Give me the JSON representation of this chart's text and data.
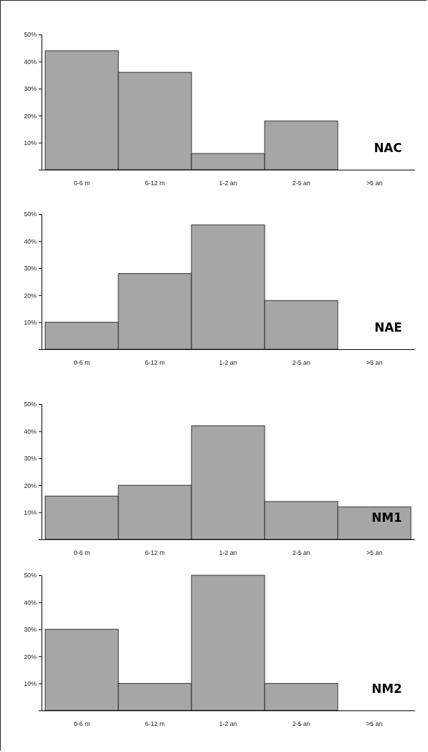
{
  "chart_data": [
    {
      "type": "bar",
      "title": "NAC",
      "categories": [
        "0-6 m",
        "6-12 m",
        "1-2 an",
        "2-5 an",
        ">5 an"
      ],
      "values": [
        44,
        36,
        6,
        18,
        0
      ],
      "color": "#a6a6a6",
      "ylim": [
        0,
        50
      ],
      "yticks": [
        {
          "value": 10,
          "label": "10%"
        },
        {
          "value": 20,
          "label": "20%"
        },
        {
          "value": 30,
          "label": "30%"
        },
        {
          "value": 40,
          "label": "40%"
        },
        {
          "value": 50,
          "label": "50%"
        }
      ]
    },
    {
      "type": "bar",
      "title": "NAE",
      "categories": [
        "0-6 m",
        "6-12 m",
        "1-2 an",
        "2-5 an",
        ">5 an"
      ],
      "values": [
        10,
        28,
        46,
        18,
        0
      ],
      "color": "#a6a6a6",
      "ylim": [
        0,
        50
      ],
      "yticks": [
        {
          "value": 10,
          "label": "10%"
        },
        {
          "value": 20,
          "label": "20%"
        },
        {
          "value": 30,
          "label": "30%"
        },
        {
          "value": 40,
          "label": "40%"
        },
        {
          "value": 50,
          "label": "50%"
        }
      ]
    },
    {
      "type": "bar",
      "title": "NM1",
      "categories": [
        "0-6 m",
        "6-12 m",
        "1-2 an",
        "2-5 an",
        ">5 an"
      ],
      "values": [
        16,
        20,
        42,
        14,
        12
      ],
      "color": "#a6a6a6",
      "ylim": [
        0,
        50
      ],
      "yticks": [
        {
          "value": 10,
          "label": "10%"
        },
        {
          "value": 20,
          "label": "20%"
        },
        {
          "value": 30,
          "label": "30%"
        },
        {
          "value": 40,
          "label": "40%"
        },
        {
          "value": 50,
          "label": "50%"
        }
      ]
    },
    {
      "type": "bar",
      "title": "NM2",
      "categories": [
        "0-6 m",
        "6-12 m",
        "1-2 an",
        "2-5 an",
        ">5 an"
      ],
      "values": [
        30,
        10,
        50,
        10,
        0
      ],
      "color": "#a6a6a6",
      "ylim": [
        0,
        50
      ],
      "yticks": [
        {
          "value": 10,
          "label": "10%"
        },
        {
          "value": 20,
          "label": "20%"
        },
        {
          "value": 30,
          "label": "30%"
        },
        {
          "value": 40,
          "label": "40%"
        },
        {
          "value": 50,
          "label": "50%"
        }
      ]
    }
  ]
}
